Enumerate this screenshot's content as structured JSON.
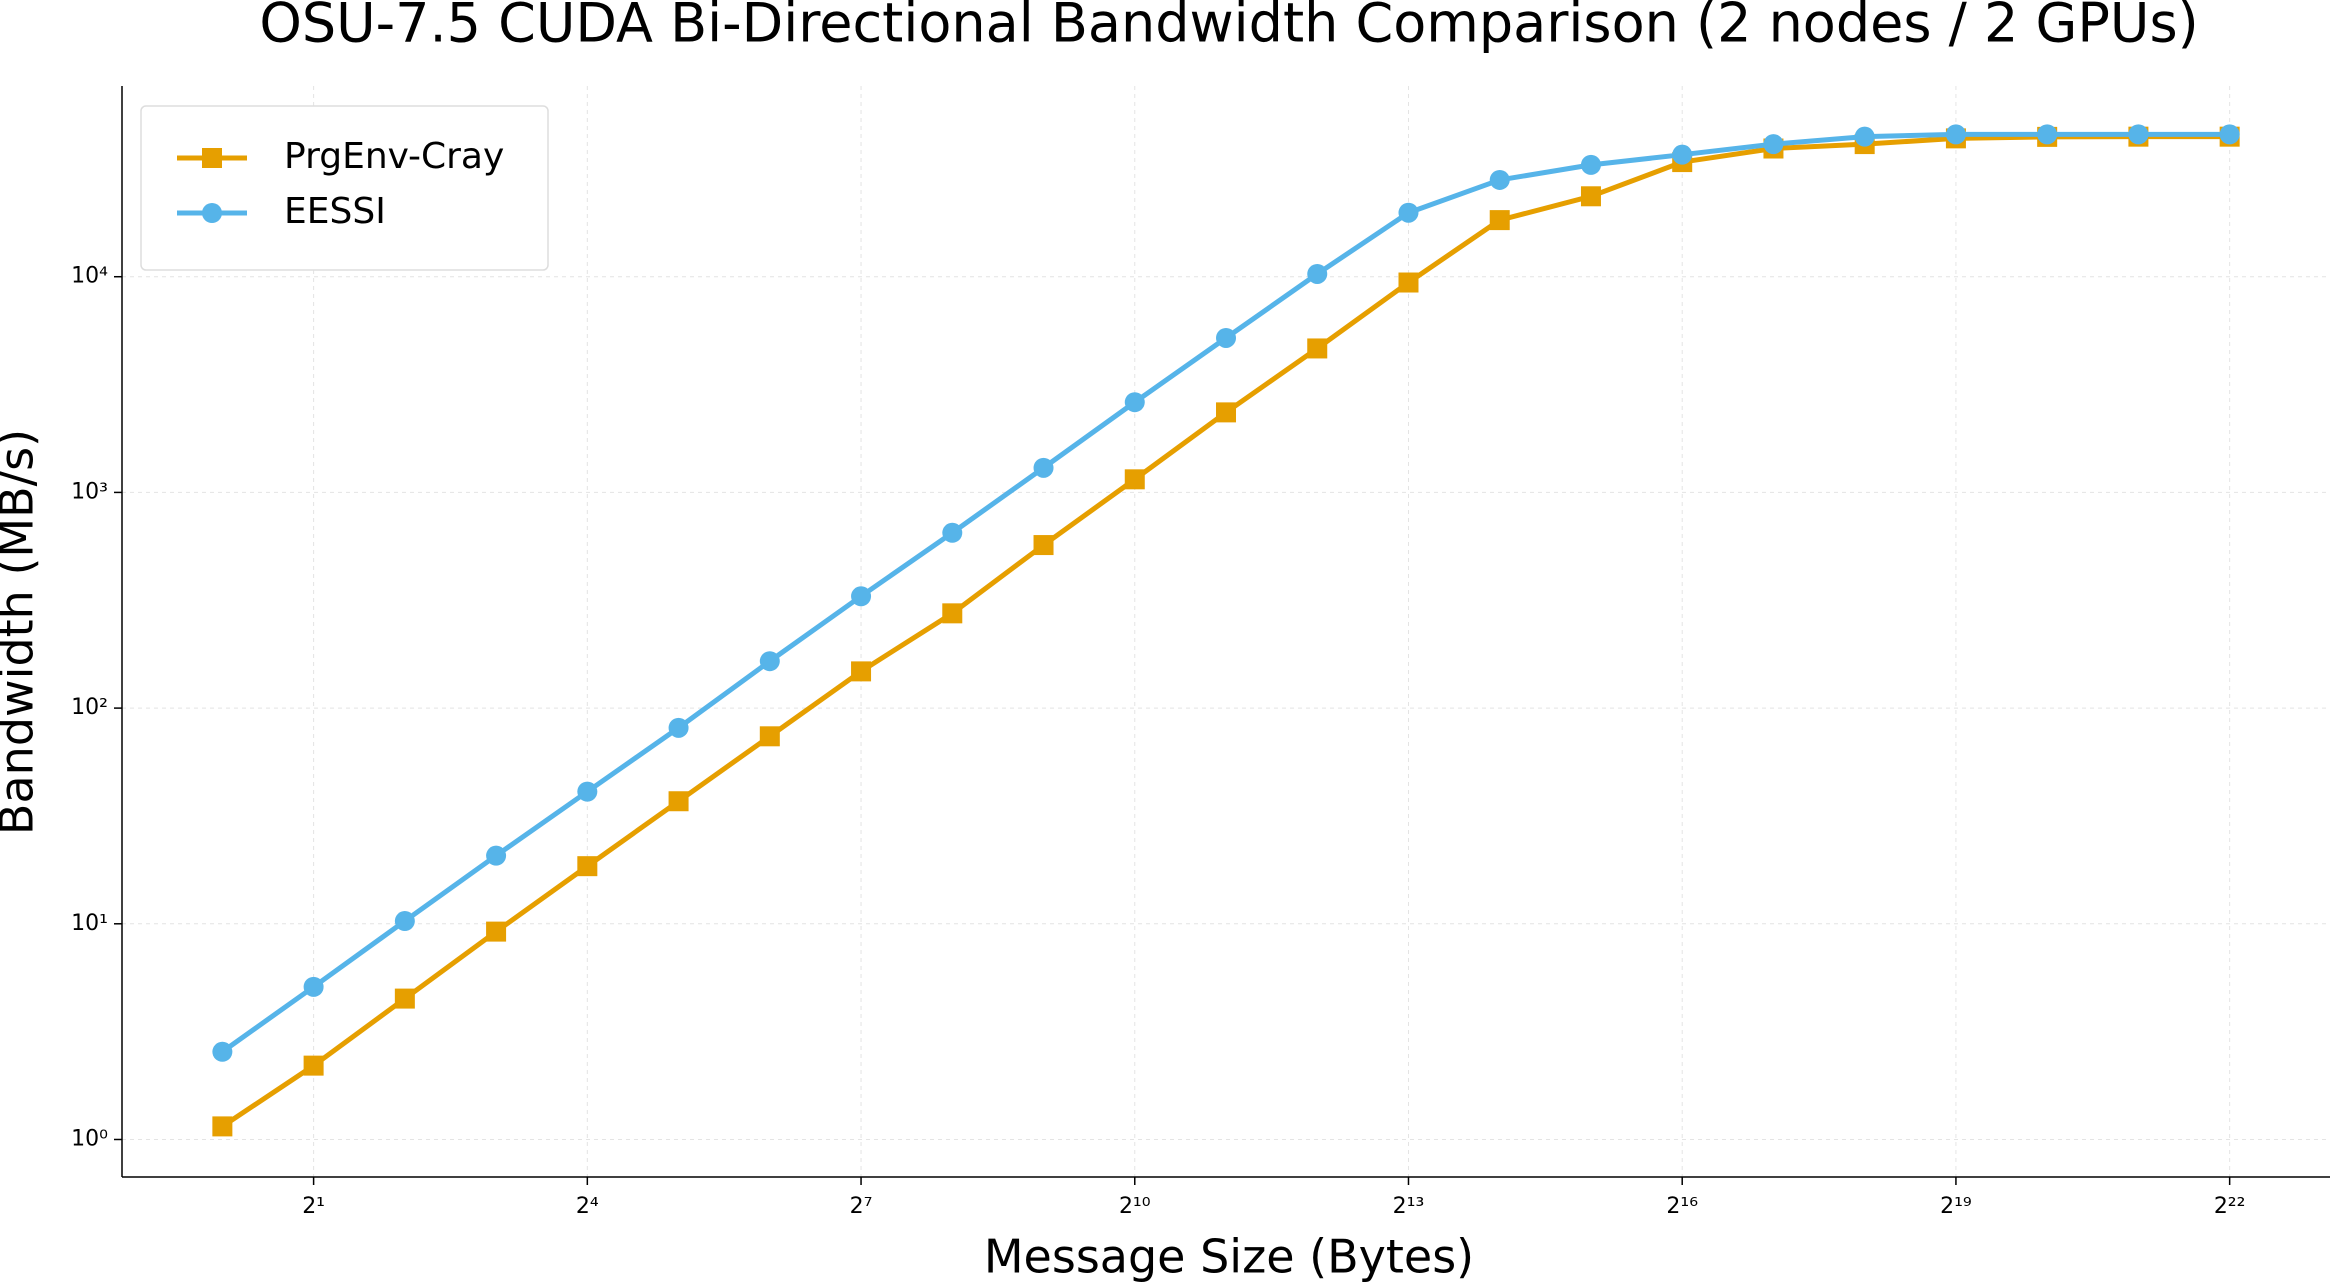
{
  "chart_data": {
    "type": "line",
    "title": "OSU-7.5 CUDA Bi-Directional Bandwidth Comparison (2 nodes / 2 GPUs)",
    "x_label": "Message Size (Bytes)",
    "y_label": "Bandwidth (MB/s)",
    "x": [
      1,
      2,
      4,
      8,
      16,
      32,
      64,
      128,
      256,
      512,
      1024,
      2048,
      4096,
      8192,
      16384,
      32768,
      65536,
      131072,
      262144,
      524288,
      1048576,
      2097152,
      4194304
    ],
    "series": [
      {
        "name": "PrgEnv-Cray",
        "color": "#e69f00",
        "marker": "square",
        "values": [
          1.15,
          2.2,
          4.5,
          9.2,
          18.5,
          37,
          74,
          148,
          275,
          570,
          1150,
          2350,
          4650,
          9400,
          18300,
          23600,
          34000,
          39300,
          41200,
          43800,
          44500,
          44600,
          44600
        ]
      },
      {
        "name": "EESSI",
        "color": "#56b4e9",
        "marker": "circle",
        "values": [
          2.55,
          5.1,
          10.3,
          20.7,
          41,
          81,
          165,
          330,
          650,
          1300,
          2620,
          5200,
          10300,
          19800,
          28100,
          33000,
          36800,
          41200,
          44600,
          45700,
          45700,
          45700,
          45700
        ]
      }
    ],
    "xscale": "log",
    "yscale": "log",
    "xlim": [
      0.4665,
      8990000
    ],
    "ylim": [
      0.67,
      76600
    ],
    "xticks": [
      {
        "value": 2,
        "label": "2¹"
      },
      {
        "value": 16,
        "label": "2⁴"
      },
      {
        "value": 128,
        "label": "2⁷"
      },
      {
        "value": 1024,
        "label": "2¹⁰"
      },
      {
        "value": 8192,
        "label": "2¹³"
      },
      {
        "value": 65536,
        "label": "2¹⁶"
      },
      {
        "value": 524288,
        "label": "2¹⁹"
      },
      {
        "value": 4194304,
        "label": "2²²"
      }
    ],
    "yticks": [
      {
        "value": 1,
        "label": "10⁰"
      },
      {
        "value": 10,
        "label": "10¹"
      },
      {
        "value": 100,
        "label": "10²"
      },
      {
        "value": 1000,
        "label": "10³"
      },
      {
        "value": 10000,
        "label": "10⁴"
      }
    ],
    "grid": true,
    "legend_position": "upper left"
  }
}
